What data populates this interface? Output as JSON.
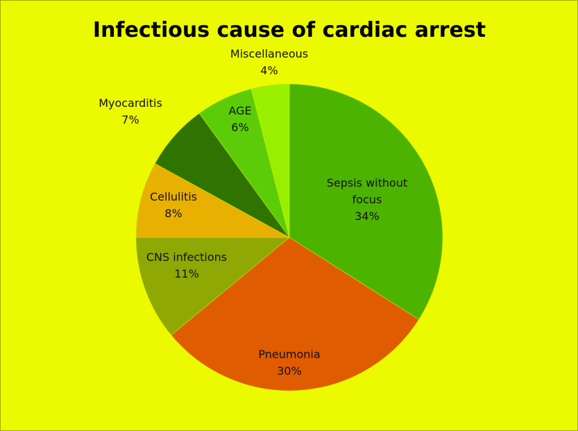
{
  "chart_data": {
    "type": "pie",
    "title": "Infectious cause of cardiac arrest",
    "start_angle": "12 o'clock",
    "direction": "clockwise",
    "slices": [
      {
        "label": "Sepsis without focus",
        "label_lines": [
          "Sepsis without",
          "focus"
        ],
        "value": 34,
        "value_label": "34%",
        "color": "#4db301"
      },
      {
        "label": "Pneumonia",
        "label_lines": [
          "Pneumonia"
        ],
        "value": 30,
        "value_label": "30%",
        "color": "#e05c00"
      },
      {
        "label": "CNS infections",
        "label_lines": [
          "CNS infections"
        ],
        "value": 11,
        "value_label": "11%",
        "color": "#8fa803"
      },
      {
        "label": "Cellulitis",
        "label_lines": [
          "Cellulitis"
        ],
        "value": 8,
        "value_label": "8%",
        "color": "#e8b000"
      },
      {
        "label": "Myocarditis",
        "label_lines": [
          "Myocarditis"
        ],
        "value": 7,
        "value_label": "7%",
        "color": "#2f7300"
      },
      {
        "label": "AGE",
        "label_lines": [
          "AGE"
        ],
        "value": 6,
        "value_label": "6%",
        "color": "#5ccc08"
      },
      {
        "label": "Miscellaneous",
        "label_lines": [
          "Miscellaneous"
        ],
        "value": 4,
        "value_label": "4%",
        "color": "#98ef00"
      }
    ],
    "legend": "none",
    "background_color": "#ecfa00"
  }
}
